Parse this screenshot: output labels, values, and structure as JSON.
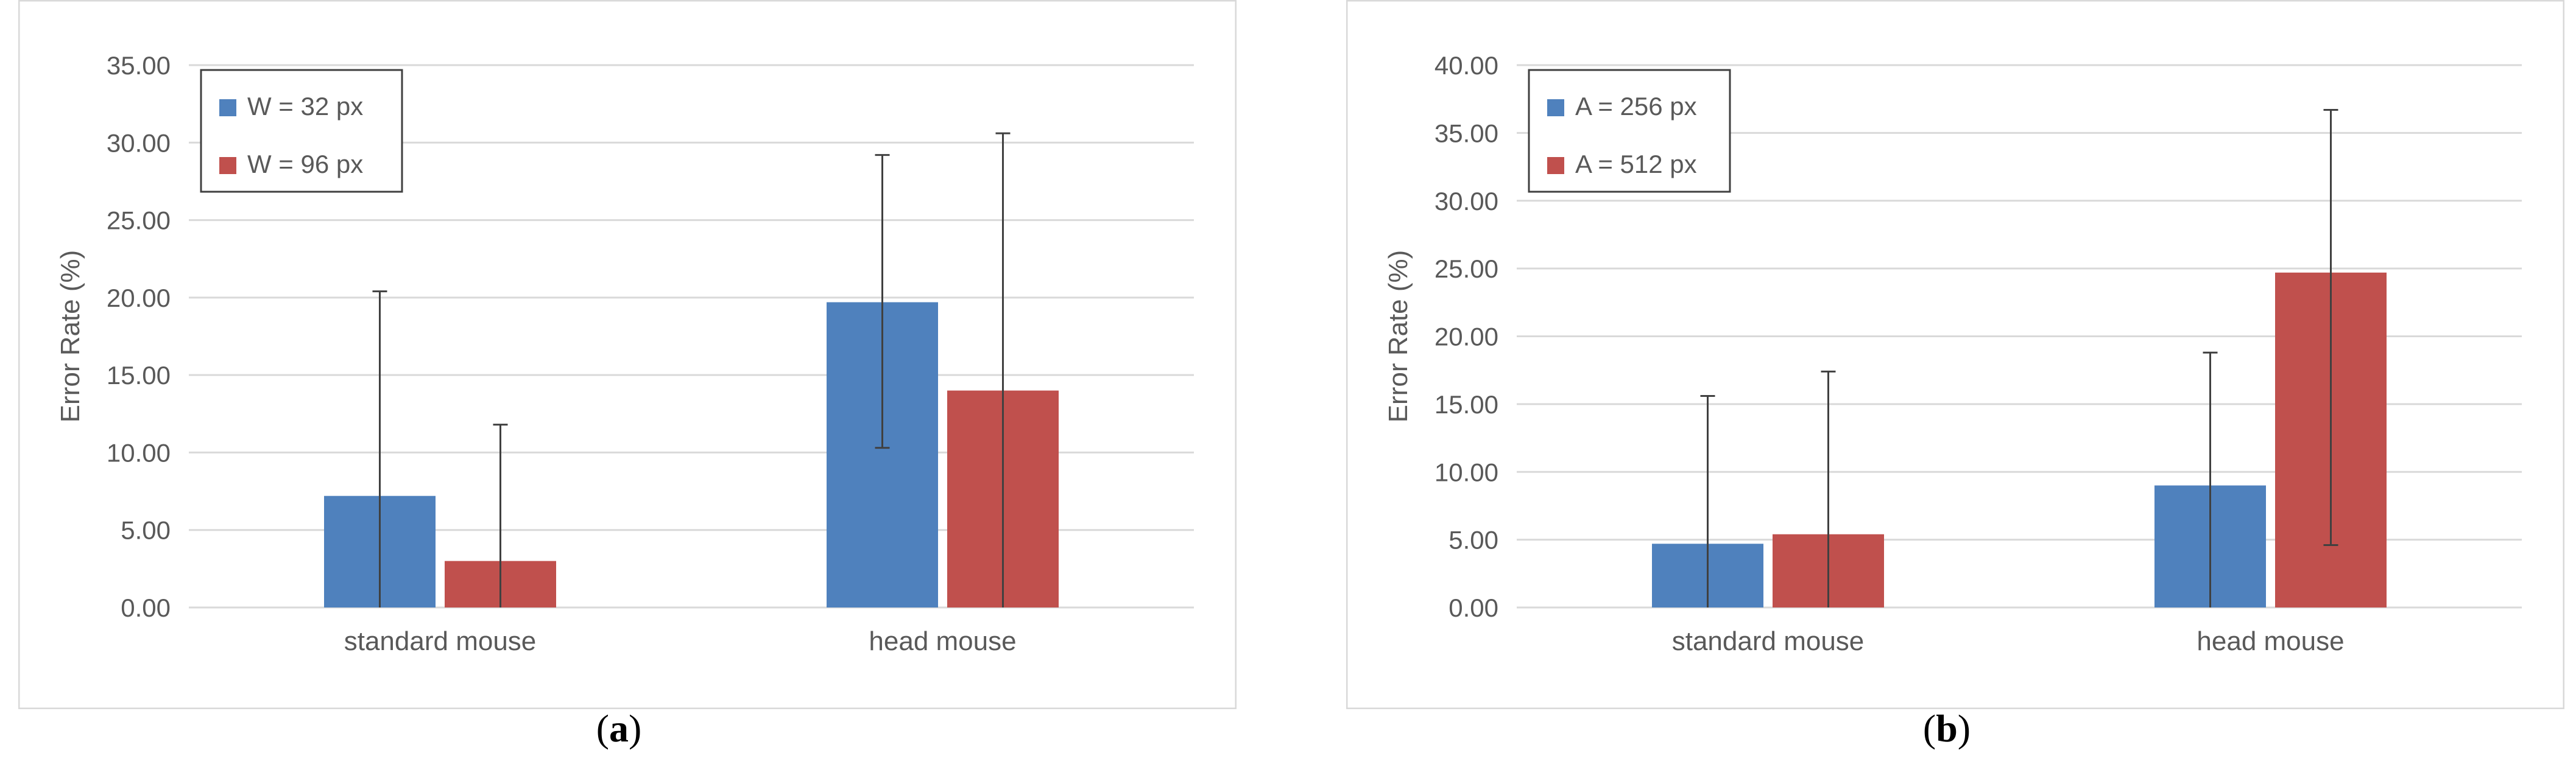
{
  "figure": {
    "captions": [
      {
        "open": "(",
        "label": "a",
        "close": ")"
      },
      {
        "open": "(",
        "label": "b",
        "close": ")"
      }
    ]
  },
  "colors": {
    "blue": "#4f81bd",
    "red": "#c0504d",
    "grid": "#d9d9d9",
    "text": "#595959",
    "border": "#d9d9d9",
    "errorbar": "#404040"
  },
  "chart_data": [
    {
      "type": "bar",
      "title": "",
      "xlabel": "",
      "ylabel": "Error Rate (%)",
      "ylim": [
        0,
        35
      ],
      "yticks": [
        "0.00",
        "5.00",
        "10.00",
        "15.00",
        "20.00",
        "25.00",
        "30.00",
        "35.00"
      ],
      "grid": true,
      "legend_position": "top-left",
      "categories": [
        "standard mouse",
        "head mouse"
      ],
      "series": [
        {
          "name": "W = 32 px",
          "color": "#4f81bd",
          "values": [
            7.2,
            19.7
          ],
          "err_high": [
            20.4,
            29.2
          ],
          "err_low": [
            0,
            10.3
          ]
        },
        {
          "name": "W = 96 px",
          "color": "#c0504d",
          "values": [
            3.0,
            14.0
          ],
          "err_high": [
            11.8,
            30.6
          ],
          "err_low": [
            0,
            0
          ]
        }
      ]
    },
    {
      "type": "bar",
      "title": "",
      "xlabel": "",
      "ylabel": "Error Rate (%)",
      "ylim": [
        0,
        40
      ],
      "yticks": [
        "0.00",
        "5.00",
        "10.00",
        "15.00",
        "20.00",
        "25.00",
        "30.00",
        "35.00",
        "40.00"
      ],
      "grid": true,
      "legend_position": "top-left",
      "categories": [
        "standard mouse",
        "head mouse"
      ],
      "series": [
        {
          "name": "A = 256 px",
          "color": "#4f81bd",
          "values": [
            4.7,
            9.0
          ],
          "err_high": [
            15.6,
            18.8
          ],
          "err_low": [
            0,
            0
          ]
        },
        {
          "name": "A = 512 px",
          "color": "#c0504d",
          "values": [
            5.4,
            24.7
          ],
          "err_high": [
            17.4,
            36.7
          ],
          "err_low": [
            0,
            4.6
          ]
        }
      ]
    }
  ]
}
